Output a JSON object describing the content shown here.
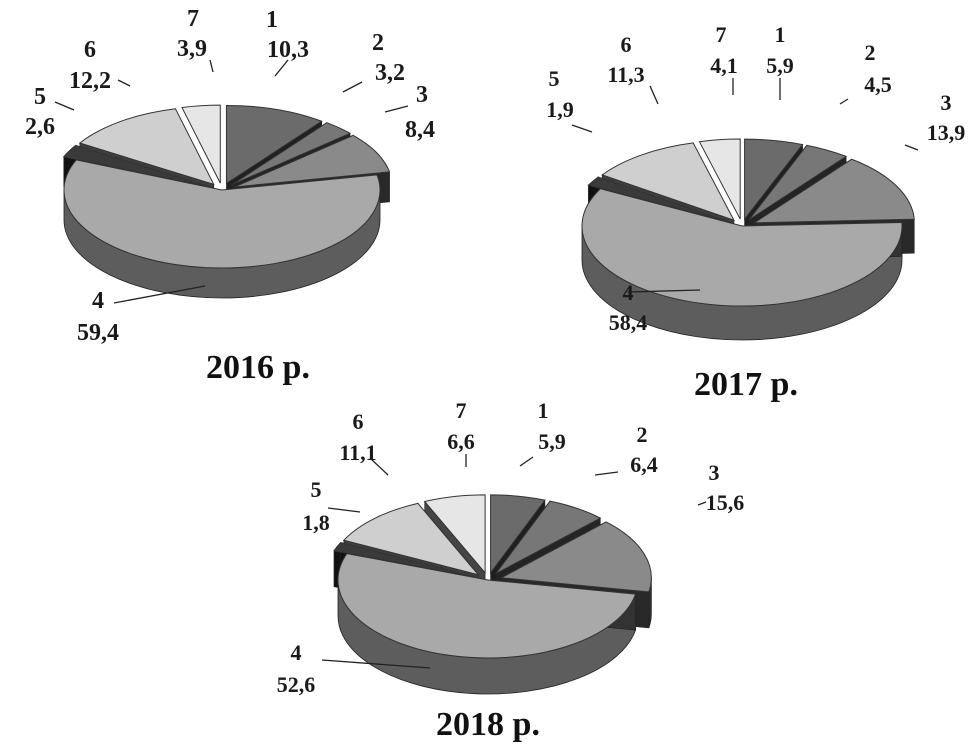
{
  "chart_data": [
    {
      "type": "pie",
      "title": "2016 р.",
      "slices": [
        {
          "label": "1",
          "value": 10.3,
          "value_text": "10,3"
        },
        {
          "label": "2",
          "value": 3.2,
          "value_text": "3,2"
        },
        {
          "label": "3",
          "value": 8.4,
          "value_text": "8,4"
        },
        {
          "label": "4",
          "value": 59.4,
          "value_text": "59,4"
        },
        {
          "label": "5",
          "value": 2.6,
          "value_text": "2,6"
        },
        {
          "label": "6",
          "value": 12.2,
          "value_text": "12,2"
        },
        {
          "label": "7",
          "value": 3.9,
          "value_text": "3,9"
        }
      ]
    },
    {
      "type": "pie",
      "title": "2017 р.",
      "slices": [
        {
          "label": "1",
          "value": 5.9,
          "value_text": "5,9"
        },
        {
          "label": "2",
          "value": 4.5,
          "value_text": "4,5"
        },
        {
          "label": "3",
          "value": 13.9,
          "value_text": "13,9"
        },
        {
          "label": "4",
          "value": 58.4,
          "value_text": "58,4"
        },
        {
          "label": "5",
          "value": 1.9,
          "value_text": "1,9"
        },
        {
          "label": "6",
          "value": 11.3,
          "value_text": "11,3"
        },
        {
          "label": "7",
          "value": 4.1,
          "value_text": "4,1"
        }
      ]
    },
    {
      "type": "pie",
      "title": "2018 р.",
      "slices": [
        {
          "label": "1",
          "value": 5.9,
          "value_text": "5,9"
        },
        {
          "label": "2",
          "value": 6.4,
          "value_text": "6,4"
        },
        {
          "label": "3",
          "value": 15.6,
          "value_text": "15,6"
        },
        {
          "label": "4",
          "value": 52.6,
          "value_text": "52,6"
        },
        {
          "label": "5",
          "value": 1.8,
          "value_text": "1,8"
        },
        {
          "label": "6",
          "value": 11.1,
          "value_text": "11,1"
        },
        {
          "label": "7",
          "value": 6.6,
          "value_text": "6,6"
        }
      ]
    }
  ],
  "slice_colors": {
    "1": "#6b6b6b",
    "2": "#777777",
    "3": "#8a8a8a",
    "4": "#a9a9a9",
    "5": "#3a3a3a",
    "6": "#cfcfcf",
    "7": "#e6e6e6"
  }
}
